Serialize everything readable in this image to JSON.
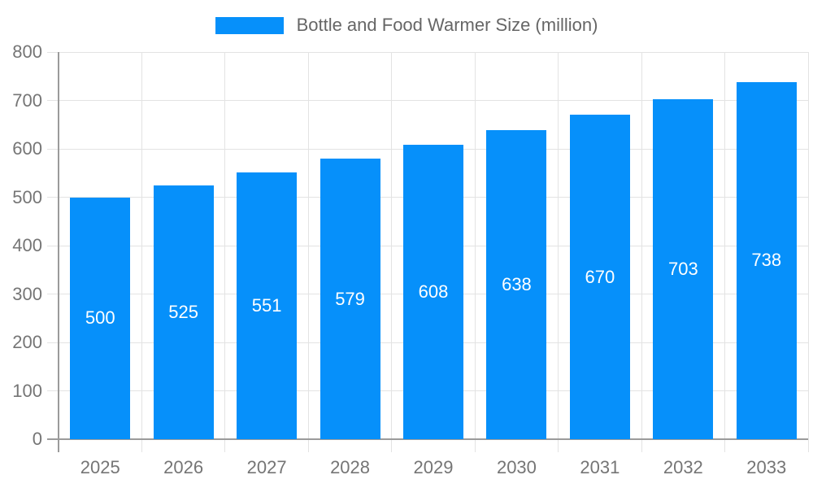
{
  "legend": {
    "label": "Bottle and Food Warmer Size (million)"
  },
  "chart_data": {
    "type": "bar",
    "title": "Bottle and Food Warmer Size (million)",
    "categories": [
      "2025",
      "2026",
      "2027",
      "2028",
      "2029",
      "2030",
      "2031",
      "2032",
      "2033"
    ],
    "values": [
      500,
      525,
      551,
      579,
      608,
      638,
      670,
      703,
      738
    ],
    "xlabel": "",
    "ylabel": "",
    "ylim": [
      0,
      800
    ],
    "ytick_step": 100,
    "y_ticks": [
      0,
      100,
      200,
      300,
      400,
      500,
      600,
      700,
      800
    ],
    "grid": "on",
    "legend_position": "top-center",
    "bar_value_labels": "centered-white",
    "colors": {
      "bar": "#0690FA",
      "bar_label": "#FFFFFF",
      "grid": "#E3E3E3",
      "axis": "#9B9B9B",
      "tick_label": "#757575",
      "legend_text": "#666666",
      "background": "#FFFFFF"
    }
  }
}
